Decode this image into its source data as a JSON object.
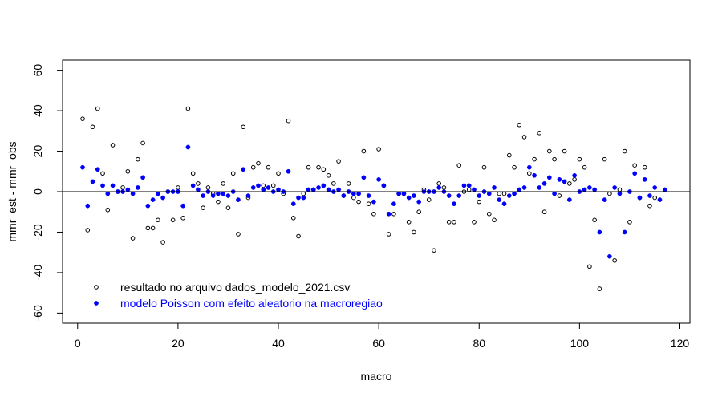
{
  "chart_data": {
    "type": "scatter",
    "xlabel": "macro",
    "ylabel": "mmr_est - mmr_obs",
    "xlim": [
      -3,
      122
    ],
    "ylim": [
      -65,
      65
    ],
    "x_ticks": [
      0,
      20,
      40,
      60,
      80,
      100,
      120
    ],
    "y_ticks": [
      -60,
      -40,
      -20,
      0,
      20,
      40,
      60
    ],
    "reference_line": 0,
    "legend_position": "bottom-left",
    "series": [
      {
        "name": "resultado no arquivo dados_modelo_2021.csv",
        "marker": "open-circle",
        "color": "#000000",
        "values": [
          36,
          -19,
          32,
          41,
          9,
          -9,
          23,
          0,
          2,
          10,
          -23,
          16,
          24,
          -18,
          -18,
          -14,
          -25,
          0,
          -14,
          2,
          -13,
          41,
          9,
          4,
          -8,
          2,
          -1,
          -5,
          4,
          -8,
          9,
          -21,
          32,
          -3,
          12,
          14,
          3,
          12,
          3,
          9,
          -1,
          35,
          -13,
          -22,
          -1,
          12,
          1,
          12,
          11,
          8,
          4,
          15,
          -2,
          4,
          -3,
          -5,
          20,
          -6,
          -11,
          21,
          3,
          -21,
          -11,
          -1,
          -1,
          -15,
          -20,
          -10,
          1,
          -4,
          -29,
          4,
          2,
          -15,
          -15,
          13,
          0,
          1,
          -15,
          -5,
          12,
          -11,
          -14,
          -1,
          -1,
          18,
          12,
          33,
          27,
          9,
          16,
          29,
          -10,
          20,
          16,
          -2,
          20,
          4,
          6,
          16,
          12,
          -37,
          -14,
          -48,
          16,
          -1,
          -34,
          1,
          20,
          -15,
          13,
          -3,
          12,
          -7,
          -3
        ]
      },
      {
        "name": "modelo Poisson com efeito aleatorio na macroregiao",
        "marker": "filled-circle",
        "color": "#0000ff",
        "values": [
          12,
          -7,
          5,
          11,
          3,
          -1,
          3,
          0,
          0,
          1,
          -1,
          2,
          7,
          -7,
          -4,
          -1,
          -3,
          0,
          0,
          0,
          -7,
          22,
          3,
          1,
          -2,
          0,
          -2,
          -1,
          -1,
          -2,
          0,
          -4,
          11,
          -2,
          2,
          3,
          1,
          2,
          0,
          1,
          0,
          10,
          -6,
          -3,
          -3,
          1,
          1,
          2,
          3,
          1,
          0,
          1,
          -2,
          0,
          -1,
          -1,
          7,
          -2,
          -5,
          6,
          3,
          -11,
          -6,
          -1,
          -1,
          -3,
          -2,
          -5,
          0,
          0,
          0,
          2,
          0,
          -2,
          -6,
          -2,
          3,
          3,
          1,
          -2,
          0,
          -1,
          2,
          -4,
          -6,
          -2,
          -1,
          1,
          2,
          12,
          8,
          2,
          4,
          7,
          -1,
          6,
          5,
          -4,
          8,
          0,
          1,
          2,
          1,
          -20,
          -4,
          -32,
          2,
          -1,
          -20,
          0,
          9,
          -3,
          6,
          -2,
          2,
          -4,
          1
        ]
      }
    ]
  }
}
